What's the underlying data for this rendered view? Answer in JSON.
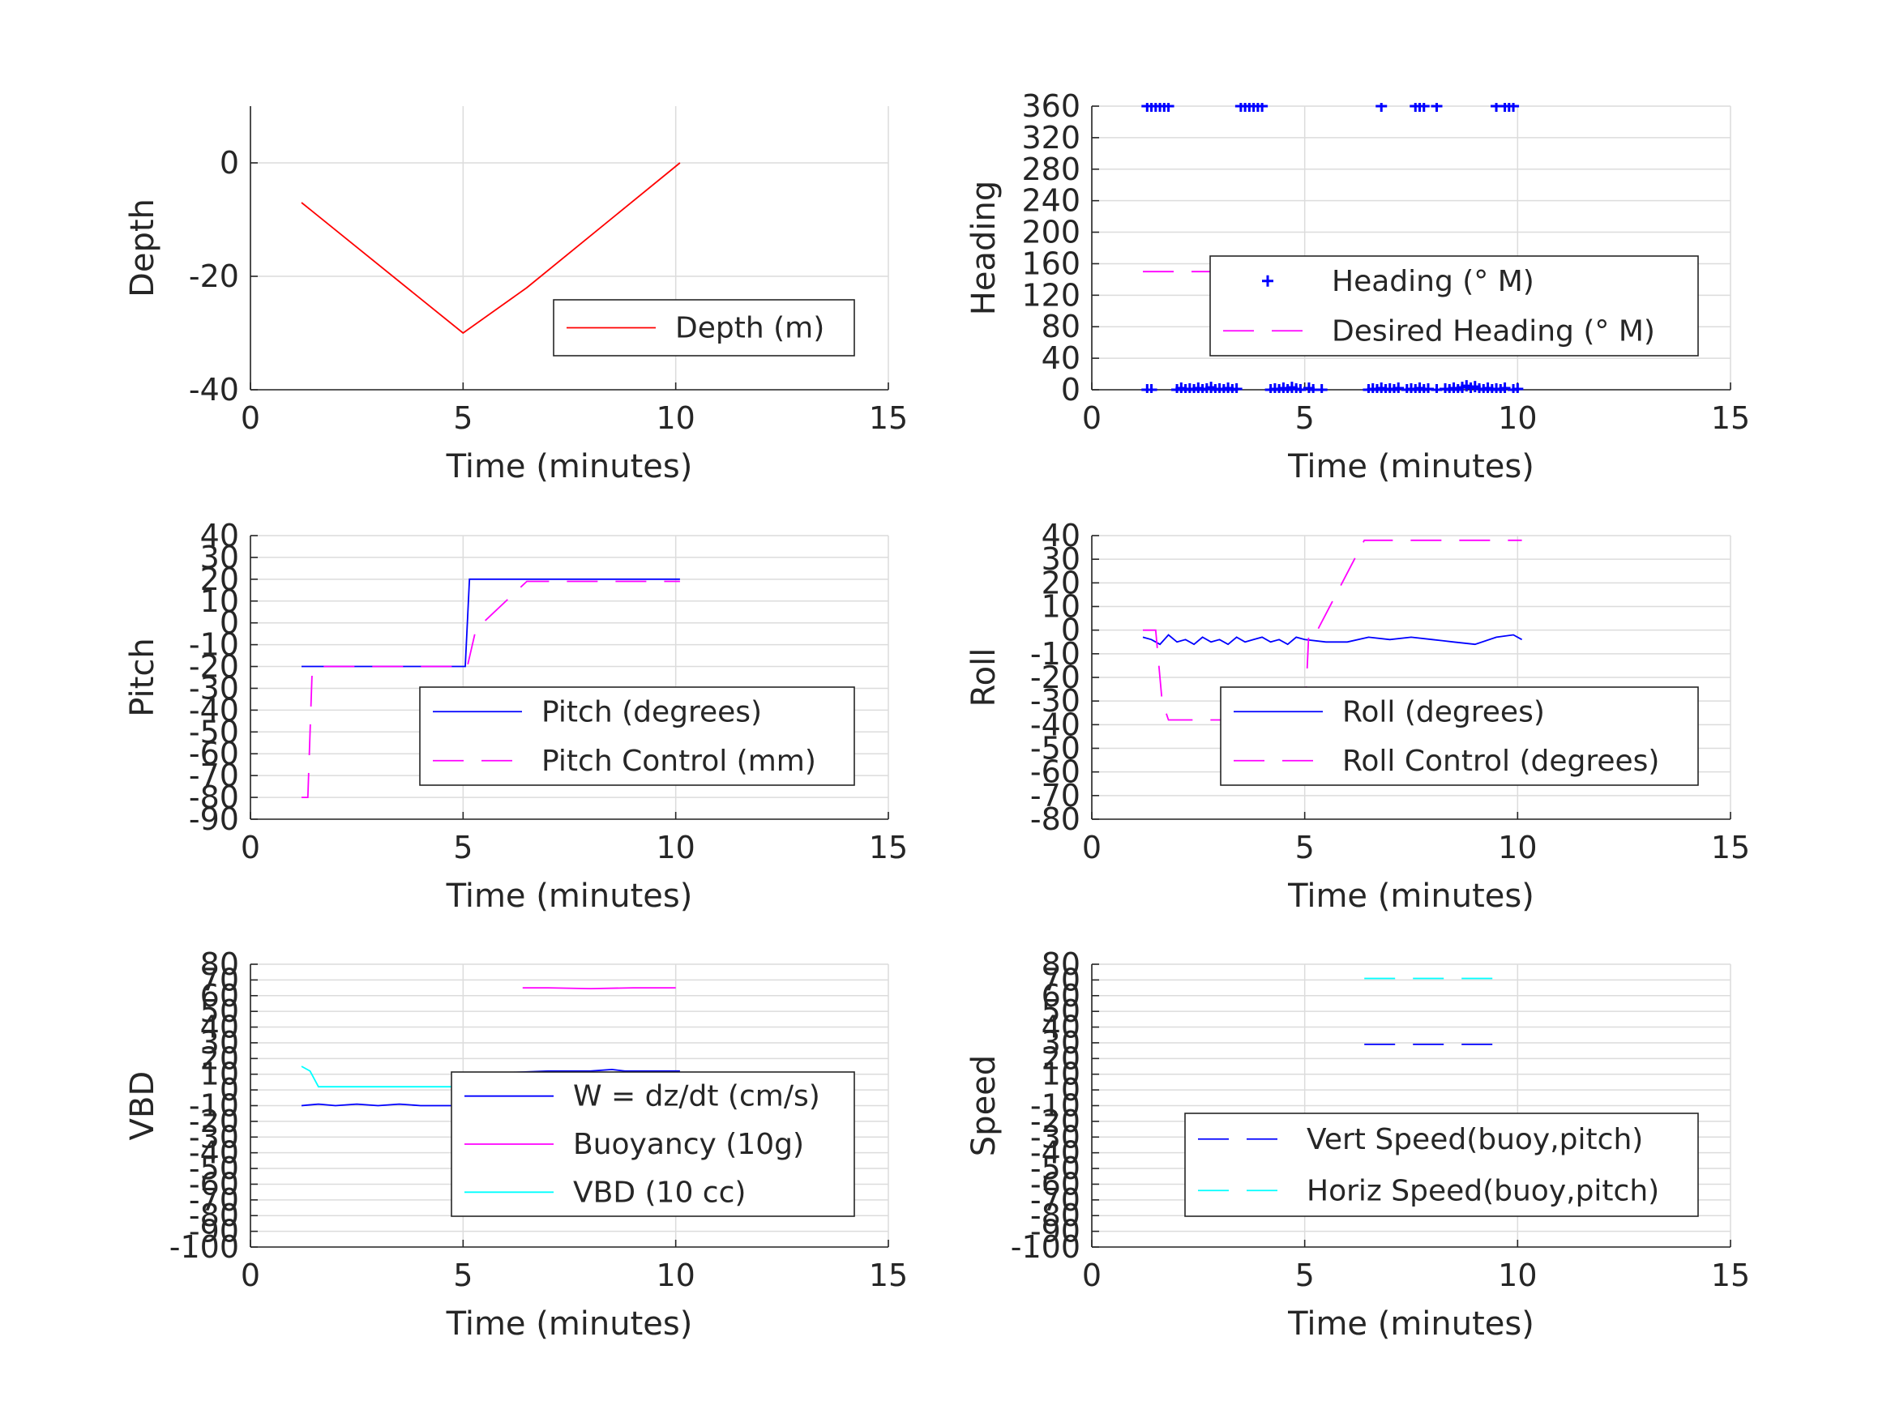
{
  "chart_data": [
    {
      "type": "line",
      "xlabel": "Time (minutes)",
      "ylabel": "Depth",
      "xlim": [
        0,
        15
      ],
      "ylim": [
        -40,
        10
      ],
      "xticks": [
        0,
        5,
        10,
        15
      ],
      "yticks": [
        -40,
        -20,
        0
      ],
      "grid": true,
      "legend_position": "bottom-right",
      "series": [
        {
          "name": "Depth (m)",
          "color": "#ff0000",
          "style": "solid",
          "x": [
            1.2,
            5.0,
            6.5,
            10.1
          ],
          "y": [
            -7,
            -30,
            -22,
            0
          ]
        }
      ]
    },
    {
      "type": "line",
      "xlabel": "Time (minutes)",
      "ylabel": "Heading",
      "xlim": [
        0,
        15
      ],
      "ylim": [
        0,
        360
      ],
      "xticks": [
        0,
        5,
        10,
        15
      ],
      "yticks": [
        0,
        40,
        80,
        120,
        160,
        200,
        240,
        280,
        320,
        360
      ],
      "grid": true,
      "legend_position": "center-right",
      "series": [
        {
          "name": "Heading (° M)",
          "color": "#0000ff",
          "style": "plus-markers",
          "points": [
            [
              1.3,
              0
            ],
            [
              1.4,
              0
            ],
            [
              2.0,
              0
            ],
            [
              2.1,
              2
            ],
            [
              2.2,
              0
            ],
            [
              2.3,
              1
            ],
            [
              2.4,
              0
            ],
            [
              2.5,
              2
            ],
            [
              2.6,
              0
            ],
            [
              2.7,
              1
            ],
            [
              2.8,
              3
            ],
            [
              2.9,
              0
            ],
            [
              3.0,
              1
            ],
            [
              3.1,
              0
            ],
            [
              3.2,
              2
            ],
            [
              3.3,
              0
            ],
            [
              3.4,
              1
            ],
            [
              4.2,
              0
            ],
            [
              4.3,
              1
            ],
            [
              4.4,
              0
            ],
            [
              4.5,
              2
            ],
            [
              4.6,
              0
            ],
            [
              4.7,
              3
            ],
            [
              4.8,
              1
            ],
            [
              4.9,
              0
            ],
            [
              5.1,
              2
            ],
            [
              5.2,
              0
            ],
            [
              5.4,
              0
            ],
            [
              6.5,
              0
            ],
            [
              6.6,
              1
            ],
            [
              6.7,
              0
            ],
            [
              6.8,
              2
            ],
            [
              6.9,
              0
            ],
            [
              7.0,
              1
            ],
            [
              7.1,
              0
            ],
            [
              7.2,
              2
            ],
            [
              7.4,
              0
            ],
            [
              7.5,
              1
            ],
            [
              7.6,
              0
            ],
            [
              7.7,
              2
            ],
            [
              7.8,
              0
            ],
            [
              7.9,
              1
            ],
            [
              8.1,
              0
            ],
            [
              8.3,
              1
            ],
            [
              8.4,
              0
            ],
            [
              8.5,
              2
            ],
            [
              8.6,
              0
            ],
            [
              8.7,
              3
            ],
            [
              8.8,
              5
            ],
            [
              8.9,
              2
            ],
            [
              9.0,
              4
            ],
            [
              9.1,
              1
            ],
            [
              9.2,
              0
            ],
            [
              9.3,
              2
            ],
            [
              9.4,
              0
            ],
            [
              9.5,
              1
            ],
            [
              9.6,
              0
            ],
            [
              9.7,
              2
            ],
            [
              9.9,
              0
            ],
            [
              10.0,
              1
            ],
            [
              1.3,
              360
            ],
            [
              1.4,
              360
            ],
            [
              1.5,
              360
            ],
            [
              1.6,
              360
            ],
            [
              1.7,
              360
            ],
            [
              1.8,
              360
            ],
            [
              3.5,
              360
            ],
            [
              3.6,
              360
            ],
            [
              3.7,
              360
            ],
            [
              3.8,
              360
            ],
            [
              3.9,
              360
            ],
            [
              4.0,
              360
            ],
            [
              6.8,
              360
            ],
            [
              7.6,
              360
            ],
            [
              7.7,
              360
            ],
            [
              7.8,
              360
            ],
            [
              8.1,
              360
            ],
            [
              9.5,
              360
            ],
            [
              9.7,
              360
            ],
            [
              9.8,
              360
            ],
            [
              9.9,
              360
            ]
          ]
        },
        {
          "name": "Desired Heading (° M)",
          "color": "#ff00ff",
          "style": "dashed",
          "x": [
            1.2,
            10.1
          ],
          "y": [
            150,
            150
          ]
        }
      ]
    },
    {
      "type": "line",
      "xlabel": "Time (minutes)",
      "ylabel": "Pitch",
      "xlim": [
        0,
        15
      ],
      "ylim": [
        -90,
        40
      ],
      "xticks": [
        0,
        5,
        10,
        15
      ],
      "yticks": [
        -90,
        -80,
        -70,
        -60,
        -50,
        -40,
        -30,
        -20,
        -10,
        0,
        10,
        20,
        30,
        40
      ],
      "grid": true,
      "legend_position": "bottom-right",
      "series": [
        {
          "name": "Pitch (degrees)",
          "color": "#0000ff",
          "style": "solid",
          "x": [
            1.2,
            5.05,
            5.15,
            10.1
          ],
          "y": [
            -20,
            -20,
            20,
            20
          ]
        },
        {
          "name": "Pitch Control (mm)",
          "color": "#ff00ff",
          "style": "dashed",
          "x": [
            1.2,
            1.35,
            1.45,
            1.6,
            5.1,
            5.3,
            6.5,
            10.1
          ],
          "y": [
            -80,
            -80,
            -22,
            -20,
            -20,
            -3,
            19,
            19
          ]
        }
      ]
    },
    {
      "type": "line",
      "xlabel": "Time (minutes)",
      "ylabel": "Roll",
      "xlim": [
        0,
        15
      ],
      "ylim": [
        -80,
        40
      ],
      "xticks": [
        0,
        5,
        10,
        15
      ],
      "yticks": [
        -80,
        -70,
        -60,
        -50,
        -40,
        -30,
        -20,
        -10,
        0,
        10,
        20,
        30,
        40
      ],
      "grid": true,
      "legend_position": "bottom-right",
      "series": [
        {
          "name": "Roll (degrees)",
          "color": "#0000ff",
          "style": "solid",
          "x": [
            1.2,
            1.4,
            1.6,
            1.8,
            2.0,
            2.2,
            2.4,
            2.6,
            2.8,
            3.0,
            3.2,
            3.4,
            3.6,
            3.8,
            4.0,
            4.2,
            4.4,
            4.6,
            4.8,
            5.0,
            5.5,
            6.0,
            6.5,
            7.0,
            7.5,
            8.0,
            8.5,
            9.0,
            9.5,
            9.9,
            10.1
          ],
          "y": [
            -3,
            -4,
            -6,
            -2,
            -5,
            -4,
            -6,
            -3,
            -5,
            -4,
            -6,
            -3,
            -5,
            -4,
            -3,
            -5,
            -4,
            -6,
            -3,
            -4,
            -5,
            -5,
            -3,
            -4,
            -3,
            -4,
            -5,
            -6,
            -3,
            -2,
            -4
          ]
        },
        {
          "name": "Roll Control (degrees)",
          "color": "#ff00ff",
          "style": "dashed",
          "x": [
            1.2,
            1.5,
            1.65,
            1.8,
            5.0,
            5.1,
            5.3,
            6.4,
            10.1
          ],
          "y": [
            0,
            0,
            -30,
            -38,
            -38,
            0,
            0,
            38,
            38
          ]
        }
      ]
    },
    {
      "type": "line",
      "xlabel": "Time (minutes)",
      "ylabel": "VBD",
      "xlim": [
        0,
        15
      ],
      "ylim": [
        -100,
        80
      ],
      "xticks": [
        0,
        5,
        10,
        15
      ],
      "yticks": [
        -100,
        -90,
        -80,
        -70,
        -60,
        -50,
        -40,
        -30,
        -20,
        -10,
        0,
        10,
        20,
        30,
        40,
        50,
        60,
        70,
        80
      ],
      "grid": true,
      "legend_position": "bottom-right",
      "series": [
        {
          "name": "W = dz/dt (cm/s)",
          "color": "#0000ff",
          "style": "solid",
          "x": [
            1.2,
            1.6,
            2.0,
            2.5,
            3.0,
            3.5,
            4.0,
            4.5,
            4.95,
            5.15,
            5.3,
            6.0,
            7.0,
            8.0,
            8.5,
            8.8,
            9.0,
            10.1
          ],
          "y": [
            -10,
            -9,
            -10,
            -9,
            -10,
            -9,
            -10,
            -10,
            -10,
            5,
            11,
            11,
            12,
            12,
            13,
            12,
            12,
            12
          ]
        },
        {
          "name": "Buoyancy (10g)",
          "color": "#ff00ff",
          "style": "solid",
          "x": [
            6.4,
            7.0,
            8.0,
            9.0,
            10.0
          ],
          "y": [
            65,
            65,
            64.5,
            65,
            65
          ]
        },
        {
          "name": "VBD (10 cc)",
          "color": "#00ffff",
          "style": "solid",
          "x": [
            1.2,
            1.4,
            1.6,
            2.0,
            5.0,
            10.0
          ],
          "y": [
            15,
            12,
            2,
            2,
            2,
            2
          ]
        }
      ]
    },
    {
      "type": "line",
      "xlabel": "Time (minutes)",
      "ylabel": "Speed",
      "xlim": [
        0,
        15
      ],
      "ylim": [
        -100,
        80
      ],
      "xticks": [
        0,
        5,
        10,
        15
      ],
      "yticks": [
        -100,
        -90,
        -80,
        -70,
        -60,
        -50,
        -40,
        -30,
        -20,
        -10,
        0,
        10,
        20,
        30,
        40,
        50,
        60,
        70,
        80
      ],
      "grid": true,
      "legend_position": "bottom-right",
      "series": [
        {
          "name": "Vert Speed(buoy,pitch)",
          "color": "#0000ff",
          "style": "dashed",
          "x": [
            6.4,
            9.7
          ],
          "y": [
            29,
            29
          ]
        },
        {
          "name": "Horiz Speed(buoy,pitch)",
          "color": "#00ffff",
          "style": "dashed",
          "x": [
            6.4,
            9.7
          ],
          "y": [
            71,
            71
          ]
        }
      ]
    }
  ]
}
